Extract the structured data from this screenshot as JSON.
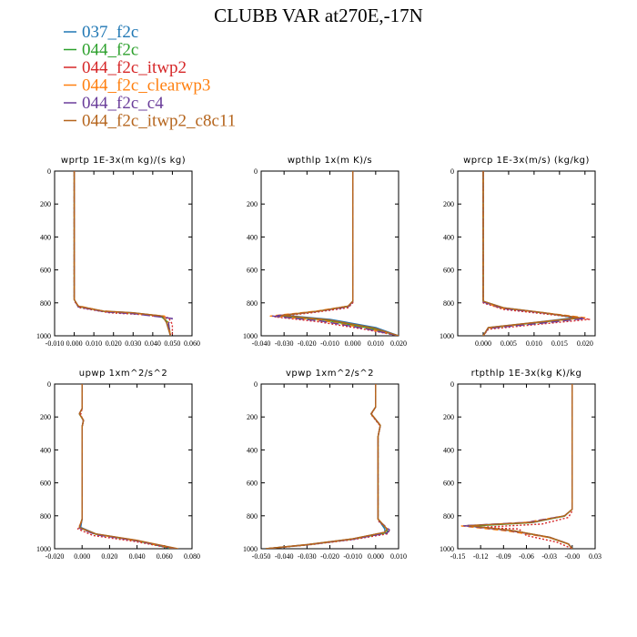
{
  "title": "CLUBB VAR at270E,-17N",
  "legend": [
    {
      "label": "037_f2c",
      "color": "#1f77b4",
      "dash": "solid"
    },
    {
      "label": "044_f2c",
      "color": "#2ca02c",
      "dash": "solid"
    },
    {
      "label": "044_f2c_itwp2",
      "color": "#d62728",
      "dash": "dotted"
    },
    {
      "label": "044_f2c_clearwp3",
      "color": "#ff7f0e",
      "dash": "dashed"
    },
    {
      "label": "044_f2c_c4",
      "color": "#6a3d9a",
      "dash": "longdash"
    },
    {
      "label": "044_f2c_itwp2_c8c11",
      "color": "#b5651d",
      "dash": "solid"
    }
  ],
  "chart_data": [
    {
      "type": "line",
      "title": "wprtp  1E-3x(m kg)/(s kg)",
      "xlim": [
        -0.01,
        0.06
      ],
      "xticks": [
        "-0.010",
        "0.000",
        "0.010",
        "0.020",
        "0.030",
        "0.040",
        "0.050",
        "0.060"
      ],
      "ylim": [
        1000,
        0
      ],
      "yticks": [
        "0",
        "200",
        "400",
        "600",
        "800",
        "1000"
      ],
      "series": [
        {
          "x": [
            0,
            0,
            0.002,
            0.015,
            0.03,
            0.045,
            0.047,
            0.049
          ],
          "y": [
            0,
            780,
            820,
            850,
            860,
            880,
            920,
            1000
          ]
        },
        {
          "x": [
            0,
            0,
            0.002,
            0.015,
            0.03,
            0.044,
            0.048,
            0.049
          ],
          "y": [
            0,
            780,
            822,
            852,
            862,
            880,
            920,
            1000
          ]
        },
        {
          "x": [
            0,
            0,
            0.003,
            0.018,
            0.033,
            0.048,
            0.05,
            0.05
          ],
          "y": [
            0,
            790,
            830,
            860,
            870,
            890,
            930,
            1000
          ]
        },
        {
          "x": [
            0,
            0,
            0.002,
            0.014,
            0.028,
            0.046,
            0.048,
            0.049
          ],
          "y": [
            0,
            780,
            818,
            848,
            860,
            880,
            920,
            1000
          ]
        },
        {
          "x": [
            0,
            0,
            0.002,
            0.016,
            0.032,
            0.05,
            0.048,
            0.049
          ],
          "y": [
            0,
            780,
            825,
            855,
            868,
            895,
            925,
            1000
          ]
        },
        {
          "x": [
            0,
            0,
            0.002,
            0.015,
            0.03,
            0.045,
            0.047,
            0.049
          ],
          "y": [
            0,
            780,
            820,
            850,
            860,
            880,
            920,
            1000
          ]
        }
      ]
    },
    {
      "type": "line",
      "title": "wpthlp  1x(m K)/s",
      "xlim": [
        -0.04,
        0.02
      ],
      "xticks": [
        "-0.040",
        "-0.030",
        "-0.020",
        "-0.010",
        "0.000",
        "0.010",
        "0.020"
      ],
      "ylim": [
        1000,
        0
      ],
      "yticks": [
        "0",
        "200",
        "400",
        "600",
        "800",
        "1000"
      ],
      "series": [
        {
          "x": [
            0,
            0,
            -0.002,
            -0.015,
            -0.03,
            -0.01,
            0.01,
            0.02
          ],
          "y": [
            0,
            790,
            820,
            850,
            875,
            900,
            950,
            1000
          ]
        },
        {
          "x": [
            0,
            0,
            -0.002,
            -0.016,
            -0.032,
            -0.012,
            0.008,
            0.02
          ],
          "y": [
            0,
            790,
            822,
            852,
            878,
            905,
            955,
            1000
          ]
        },
        {
          "x": [
            0,
            0,
            -0.002,
            -0.018,
            -0.034,
            -0.015,
            0.005,
            0.02
          ],
          "y": [
            0,
            800,
            830,
            860,
            885,
            915,
            960,
            1000
          ]
        },
        {
          "x": [
            0,
            0,
            -0.002,
            -0.016,
            -0.036,
            -0.013,
            0.007,
            0.02
          ],
          "y": [
            0,
            790,
            820,
            850,
            880,
            908,
            958,
            1000
          ]
        },
        {
          "x": [
            0,
            0,
            -0.002,
            -0.017,
            -0.035,
            -0.014,
            0.006,
            0.02
          ],
          "y": [
            0,
            792,
            825,
            855,
            880,
            910,
            958,
            1000
          ]
        },
        {
          "x": [
            0,
            0,
            -0.002,
            -0.015,
            -0.031,
            -0.011,
            0.009,
            0.02
          ],
          "y": [
            0,
            790,
            820,
            850,
            876,
            902,
            952,
            1000
          ]
        }
      ]
    },
    {
      "type": "line",
      "title": "wprcp  1E-3x(m/s) (kg/kg)",
      "xlim": [
        -0.005,
        0.022
      ],
      "xticks": [
        "0.000",
        "0.005",
        "0.010",
        "0.015",
        "0.020"
      ],
      "ylim": [
        1000,
        0
      ],
      "yticks": [
        "0",
        "200",
        "400",
        "600",
        "800",
        "1000"
      ],
      "series": [
        {
          "x": [
            0,
            0,
            0.004,
            0.012,
            0.018,
            0.01,
            0.001,
            0
          ],
          "y": [
            0,
            790,
            830,
            860,
            890,
            920,
            950,
            1000
          ]
        },
        {
          "x": [
            0,
            0,
            0.004,
            0.012,
            0.019,
            0.01,
            0.001,
            0
          ],
          "y": [
            0,
            790,
            832,
            862,
            892,
            922,
            952,
            1000
          ]
        },
        {
          "x": [
            0,
            0,
            0.004,
            0.013,
            0.021,
            0.011,
            0.001,
            0
          ],
          "y": [
            0,
            800,
            840,
            870,
            900,
            930,
            960,
            1000
          ]
        },
        {
          "x": [
            0,
            0,
            0.003,
            0.012,
            0.02,
            0.01,
            0.001,
            0
          ],
          "y": [
            0,
            790,
            830,
            860,
            890,
            920,
            952,
            1000
          ]
        },
        {
          "x": [
            0,
            0,
            0.004,
            0.013,
            0.02,
            0.011,
            0.001,
            0
          ],
          "y": [
            0,
            795,
            835,
            865,
            895,
            925,
            955,
            1000
          ]
        },
        {
          "x": [
            0,
            0,
            0.004,
            0.012,
            0.019,
            0.01,
            0.001,
            0
          ],
          "y": [
            0,
            790,
            830,
            860,
            890,
            920,
            950,
            1000
          ]
        }
      ]
    },
    {
      "type": "line",
      "title": "upwp  1xm^2/s^2",
      "xlim": [
        -0.02,
        0.08
      ],
      "xticks": [
        "-0.020",
        "0.000",
        "0.020",
        "0.040",
        "0.060",
        "0.080"
      ],
      "ylim": [
        1000,
        0
      ],
      "yticks": [
        "0",
        "200",
        "400",
        "600",
        "800",
        "1000"
      ],
      "series": [
        {
          "x": [
            0,
            0,
            -0.002,
            0.001,
            0,
            0,
            -0.001,
            0.01,
            0.04,
            0.065
          ],
          "y": [
            0,
            150,
            180,
            220,
            260,
            820,
            870,
            910,
            950,
            1000
          ]
        },
        {
          "x": [
            0,
            0,
            -0.002,
            0.001,
            0,
            0,
            -0.002,
            0.01,
            0.04,
            0.066
          ],
          "y": [
            0,
            150,
            182,
            222,
            260,
            820,
            872,
            912,
            952,
            1000
          ]
        },
        {
          "x": [
            0,
            0,
            -0.001,
            0.001,
            0,
            0,
            -0.003,
            0.008,
            0.038,
            0.067
          ],
          "y": [
            0,
            150,
            185,
            225,
            260,
            830,
            880,
            920,
            955,
            1000
          ]
        },
        {
          "x": [
            0,
            0,
            -0.002,
            0.001,
            0,
            0,
            -0.002,
            0.009,
            0.039,
            0.068
          ],
          "y": [
            0,
            150,
            180,
            220,
            260,
            820,
            870,
            910,
            950,
            1000
          ]
        },
        {
          "x": [
            0,
            0,
            -0.002,
            0.001,
            0,
            0,
            -0.002,
            0.01,
            0.04,
            0.069
          ],
          "y": [
            0,
            150,
            180,
            220,
            260,
            825,
            875,
            915,
            952,
            1000
          ]
        },
        {
          "x": [
            0,
            0,
            -0.002,
            0.001,
            0,
            0,
            -0.002,
            0.01,
            0.041,
            0.07
          ],
          "y": [
            0,
            150,
            180,
            220,
            260,
            820,
            870,
            910,
            950,
            1000
          ]
        }
      ]
    },
    {
      "type": "line",
      "title": "vpwp  1xm^2/s^2",
      "xlim": [
        -0.05,
        0.01
      ],
      "xticks": [
        "-0.050",
        "-0.040",
        "-0.030",
        "-0.020",
        "-0.010",
        "0.000",
        "0.010"
      ],
      "ylim": [
        1000,
        0
      ],
      "yticks": [
        "0",
        "200",
        "400",
        "600",
        "800",
        "1000"
      ],
      "series": [
        {
          "x": [
            0,
            0,
            -0.002,
            0.002,
            0.001,
            0.001,
            0.004,
            0.004,
            -0.01,
            -0.03,
            -0.048
          ],
          "y": [
            0,
            140,
            180,
            250,
            320,
            820,
            880,
            900,
            940,
            975,
            1000
          ]
        },
        {
          "x": [
            0,
            0,
            -0.002,
            0.002,
            0.001,
            0.001,
            0.005,
            0.005,
            -0.01,
            -0.03,
            -0.048
          ],
          "y": [
            0,
            140,
            182,
            252,
            320,
            820,
            882,
            902,
            942,
            977,
            1000
          ]
        },
        {
          "x": [
            0,
            0,
            -0.002,
            0.002,
            0.001,
            0.001,
            0.006,
            0.005,
            -0.01,
            -0.03,
            -0.048
          ],
          "y": [
            0,
            140,
            185,
            255,
            320,
            830,
            890,
            910,
            945,
            978,
            1000
          ]
        },
        {
          "x": [
            0,
            0,
            -0.002,
            0.002,
            0.001,
            0.001,
            0.005,
            0.004,
            -0.01,
            -0.03,
            -0.048
          ],
          "y": [
            0,
            140,
            180,
            250,
            320,
            820,
            880,
            900,
            940,
            975,
            1000
          ]
        },
        {
          "x": [
            0,
            0,
            -0.002,
            0.002,
            0.001,
            0.001,
            0.006,
            0.005,
            -0.01,
            -0.03,
            -0.048
          ],
          "y": [
            0,
            140,
            180,
            250,
            320,
            825,
            885,
            905,
            942,
            976,
            1000
          ]
        },
        {
          "x": [
            0,
            0,
            -0.002,
            0.002,
            0.001,
            0.001,
            0.005,
            0.004,
            -0.01,
            -0.03,
            -0.048
          ],
          "y": [
            0,
            140,
            180,
            250,
            320,
            820,
            880,
            900,
            940,
            975,
            1000
          ]
        }
      ]
    },
    {
      "type": "line",
      "title": "rtpthlp  1E-3x(kg K)/kg",
      "xlim": [
        -0.15,
        0.03
      ],
      "xticks": [
        "-0.15",
        "-0.12",
        "-0.09",
        "-0.06",
        "-0.03",
        "-0.00",
        "0.03"
      ],
      "ylim": [
        1000,
        0
      ],
      "yticks": [
        "0",
        "200",
        "400",
        "600",
        "800",
        "1000"
      ],
      "series": [
        {
          "x": [
            0,
            0,
            -0.01,
            -0.05,
            -0.14,
            -0.08,
            -0.03,
            -0.005,
            0
          ],
          "y": [
            0,
            760,
            800,
            840,
            860,
            890,
            930,
            970,
            1000
          ]
        },
        {
          "x": [
            0,
            0,
            -0.01,
            -0.055,
            -0.13,
            -0.075,
            -0.03,
            -0.005,
            0
          ],
          "y": [
            0,
            760,
            802,
            842,
            862,
            892,
            932,
            972,
            1000
          ]
        },
        {
          "x": [
            0,
            0,
            -0.005,
            -0.04,
            -0.12,
            -0.07,
            -0.06,
            -0.02,
            0
          ],
          "y": [
            0,
            770,
            810,
            850,
            870,
            880,
            920,
            960,
            1000
          ]
        },
        {
          "x": [
            0,
            0,
            -0.01,
            -0.06,
            -0.145,
            -0.085,
            -0.03,
            -0.005,
            0
          ],
          "y": [
            0,
            760,
            800,
            840,
            862,
            892,
            932,
            972,
            1000
          ]
        },
        {
          "x": [
            0,
            0,
            -0.01,
            -0.058,
            -0.142,
            -0.082,
            -0.03,
            -0.005,
            0
          ],
          "y": [
            0,
            760,
            800,
            840,
            860,
            890,
            930,
            970,
            1000
          ]
        },
        {
          "x": [
            0,
            0,
            -0.01,
            -0.052,
            -0.135,
            -0.078,
            -0.03,
            -0.005,
            0
          ],
          "y": [
            0,
            760,
            800,
            840,
            860,
            890,
            930,
            970,
            1000
          ]
        }
      ]
    }
  ]
}
